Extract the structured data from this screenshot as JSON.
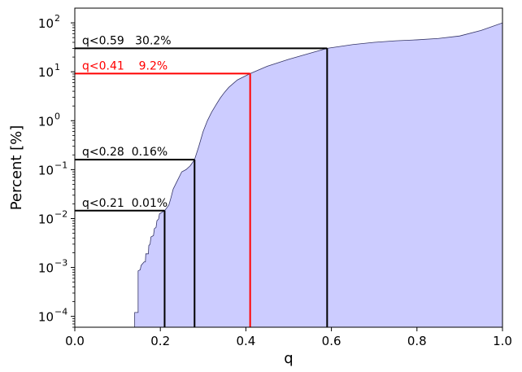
{
  "chart_data": {
    "type": "area",
    "xlabel": "q",
    "ylabel": "Percent [%]",
    "xlim": [
      0.0,
      1.0
    ],
    "ylim": [
      6e-05,
      200
    ],
    "yscale": "log",
    "grid": false,
    "x_ticks": [
      0.0,
      0.2,
      0.4,
      0.6,
      0.8,
      1.0
    ],
    "x_tick_labels": [
      "0.0",
      "0.2",
      "0.4",
      "0.6",
      "0.8",
      "1.0"
    ],
    "y_ticks": [
      0.0001,
      0.001,
      0.01,
      0.1,
      1,
      10,
      100
    ],
    "y_tick_labels": [
      {
        "base": "10",
        "exp": "−4"
      },
      {
        "base": "10",
        "exp": "−3"
      },
      {
        "base": "10",
        "exp": "−2"
      },
      {
        "base": "10",
        "exp": "−1"
      },
      {
        "base": "10",
        "exp": "0"
      },
      {
        "base": "10",
        "exp": "1"
      },
      {
        "base": "10",
        "exp": "2"
      }
    ],
    "fill_color": "#ccccff",
    "edge_color": "#333366",
    "curve": [
      [
        0.14,
        6e-05
      ],
      [
        0.14,
        0.00012
      ],
      [
        0.148,
        0.00012
      ],
      [
        0.148,
        0.00085
      ],
      [
        0.153,
        0.0009
      ],
      [
        0.155,
        0.0011
      ],
      [
        0.162,
        0.0013
      ],
      [
        0.165,
        0.0013
      ],
      [
        0.166,
        0.0019
      ],
      [
        0.172,
        0.0019
      ],
      [
        0.173,
        0.0028
      ],
      [
        0.176,
        0.003
      ],
      [
        0.178,
        0.0042
      ],
      [
        0.184,
        0.0045
      ],
      [
        0.186,
        0.0062
      ],
      [
        0.19,
        0.0066
      ],
      [
        0.192,
        0.009
      ],
      [
        0.196,
        0.0098
      ],
      [
        0.198,
        0.0125
      ],
      [
        0.21,
        0.0145
      ],
      [
        0.215,
        0.0165
      ],
      [
        0.22,
        0.019
      ],
      [
        0.225,
        0.027
      ],
      [
        0.23,
        0.04
      ],
      [
        0.24,
        0.06
      ],
      [
        0.25,
        0.09
      ],
      [
        0.26,
        0.1
      ],
      [
        0.27,
        0.12
      ],
      [
        0.28,
        0.16
      ],
      [
        0.29,
        0.3
      ],
      [
        0.3,
        0.6
      ],
      [
        0.31,
        1.0
      ],
      [
        0.32,
        1.5
      ],
      [
        0.33,
        2.1
      ],
      [
        0.34,
        2.9
      ],
      [
        0.35,
        3.8
      ],
      [
        0.36,
        4.8
      ],
      [
        0.38,
        6.8
      ],
      [
        0.41,
        9.2
      ],
      [
        0.45,
        13
      ],
      [
        0.5,
        18
      ],
      [
        0.55,
        24
      ],
      [
        0.59,
        30.2
      ],
      [
        0.65,
        36
      ],
      [
        0.7,
        40
      ],
      [
        0.75,
        43
      ],
      [
        0.8,
        45
      ],
      [
        0.85,
        48
      ],
      [
        0.9,
        54
      ],
      [
        0.95,
        70
      ],
      [
        1.0,
        100
      ]
    ],
    "annotations": [
      {
        "q": 0.21,
        "pct": 0.0145,
        "label": "q<0.21  0.01%",
        "color": "#000000"
      },
      {
        "q": 0.28,
        "pct": 0.16,
        "label": "q<0.28  0.16%",
        "color": "#000000"
      },
      {
        "q": 0.41,
        "pct": 9.2,
        "label": "q<0.41    9.2%",
        "color": "#ff0000"
      },
      {
        "q": 0.59,
        "pct": 30.2,
        "label": "q<0.59   30.2%",
        "color": "#000000"
      }
    ]
  }
}
